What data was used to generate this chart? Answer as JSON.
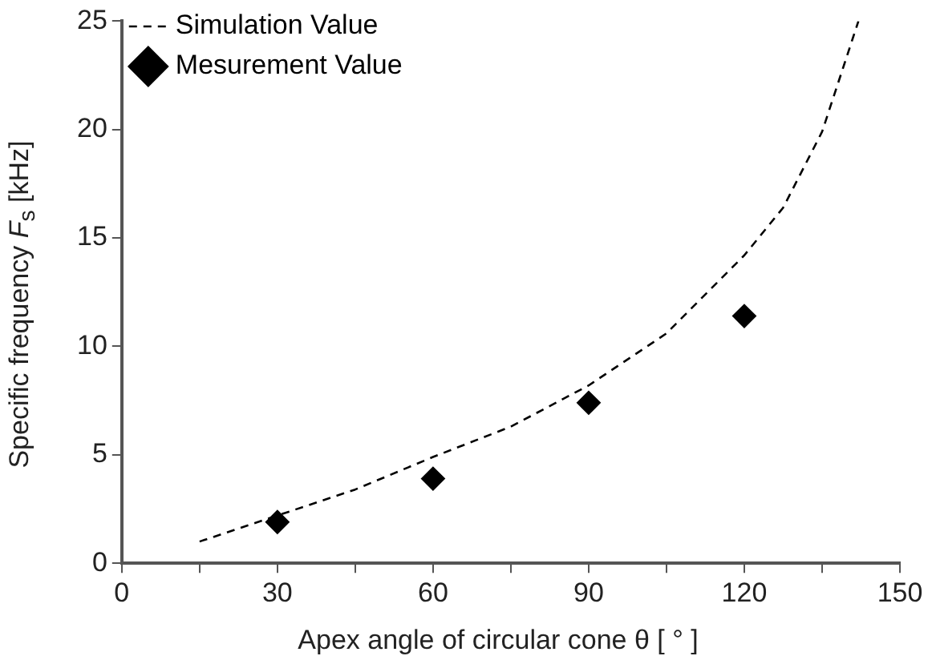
{
  "chart_data": {
    "type": "line",
    "xlabel": "Apex angle of circular cone  θ [ ° ]",
    "ylabel": "Specific frequency F$_{s}$ [kHz]",
    "xlim": [
      0,
      150
    ],
    "ylim": [
      0,
      25
    ],
    "xticks": [
      0,
      {
        "value": 15,
        "label": null
      },
      30,
      {
        "value": 45,
        "label": null
      },
      60,
      {
        "value": 75,
        "label": null
      },
      90,
      {
        "value": 105,
        "label": null
      },
      120,
      {
        "value": 135,
        "label": null
      },
      150
    ],
    "yticks": [
      0,
      5,
      10,
      15,
      20,
      25
    ],
    "grid": false,
    "legend": "top left",
    "series": [
      {
        "name": "Simulation Value",
        "type": "line",
        "color": "#000000",
        "line_style": "dashed",
        "marker": "none",
        "x": [
          15,
          30,
          45,
          60,
          75,
          90,
          105,
          120,
          127.5,
          135,
          142
        ],
        "values": [
          1.0,
          2.2,
          3.4,
          4.9,
          6.3,
          8.2,
          10.6,
          14.2,
          16.4,
          19.9,
          25
        ]
      },
      {
        "name": "Mesurement Value",
        "type": "scatter",
        "color": "#000000",
        "marker": "diamond",
        "x": [
          30,
          60,
          90,
          120
        ],
        "values": [
          1.9,
          3.9,
          7.4,
          11.4
        ]
      }
    ]
  }
}
